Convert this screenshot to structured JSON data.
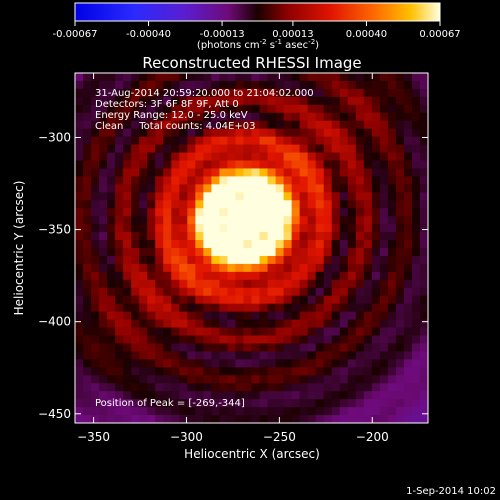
{
  "chart_data": {
    "type": "heatmap",
    "title": "Reconstructed RHESSI Image",
    "xlabel": "Heliocentric X (arcsec)",
    "ylabel": "Heliocentric Y (arcsec)",
    "xlim": [
      -360,
      -170
    ],
    "ylim": [
      -455,
      -265
    ],
    "x_ticks": [
      -350,
      -300,
      -250,
      -200
    ],
    "y_ticks": [
      -450,
      -400,
      -350,
      -300
    ],
    "colorbar": {
      "range": [
        -0.00067,
        0.00067
      ],
      "ticks": [
        -0.00067,
        -0.0004,
        -0.00013,
        0.00013,
        0.0004,
        0.00067
      ],
      "tick_labels": [
        "-0.00067",
        "-0.00040",
        "-0.00013",
        "0.00013",
        "0.00040",
        "0.00067"
      ],
      "unit_parts": [
        "(photons cm",
        "-2",
        " s",
        "-1",
        " asec",
        "-2",
        ")"
      ]
    },
    "annotations": [
      "31-Aug-2014 20:59:20.000 to 21:04:02.000",
      "Detectors: 3F 6F 8F 9F, Att 0",
      "Energy Range: 12.0 - 25.0 keV",
      "Clean     Total counts: 4.04E+03"
    ],
    "peak_label": "Position of Peak = [-269,-344]",
    "peak": [
      -269,
      -344
    ],
    "grid": false
  },
  "footer": {
    "timestamp": "1-Sep-2014 10:02"
  }
}
